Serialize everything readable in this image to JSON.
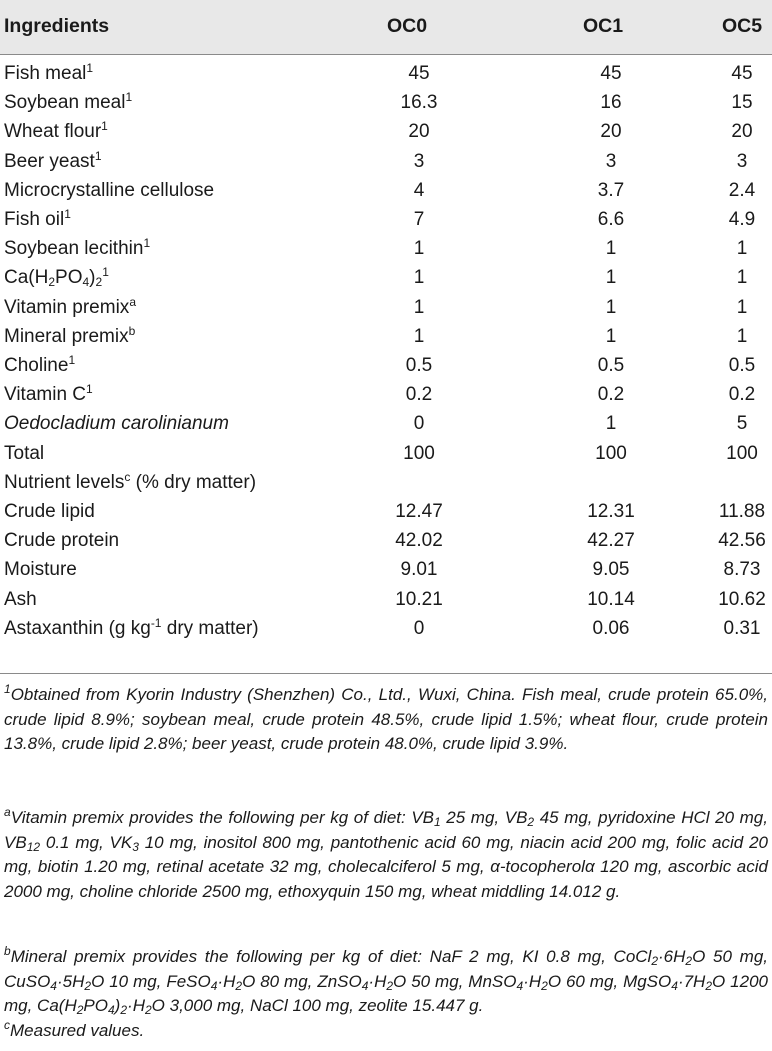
{
  "header": {
    "ingredients": "Ingredients",
    "oc0": "OC0",
    "oc1": "OC1",
    "oc5": "OC5"
  },
  "rows": [
    {
      "name": "Fish meal",
      "sup": "1",
      "v": [
        "45",
        "45",
        "45"
      ]
    },
    {
      "name": "Soybean meal",
      "sup": "1",
      "v": [
        "16.3",
        "16",
        "15"
      ]
    },
    {
      "name": "Wheat flour",
      "sup": "1",
      "v": [
        "20",
        "20",
        "20"
      ]
    },
    {
      "name": "Beer yeast",
      "sup": "1",
      "v": [
        "3",
        "3",
        "3"
      ]
    },
    {
      "name": "Microcrystalline cellulose",
      "sup": "",
      "v": [
        "4",
        "3.7",
        "2.4"
      ]
    },
    {
      "name": "Fish oil",
      "sup": "1",
      "v": [
        "7",
        "6.6",
        "4.9"
      ]
    },
    {
      "name": "Soybean lecithin",
      "sup": "1",
      "v": [
        "1",
        "1",
        "1"
      ]
    },
    {
      "name_parts": [
        "Ca(H",
        "2",
        "PO",
        "4",
        ")",
        "2"
      ],
      "sup": "1",
      "v": [
        "1",
        "1",
        "1"
      ]
    },
    {
      "name": "Vitamin premix",
      "sup": "a",
      "v": [
        "1",
        "1",
        "1"
      ]
    },
    {
      "name": "Mineral premix",
      "sup": "b",
      "v": [
        "1",
        "1",
        "1"
      ]
    },
    {
      "name": "Choline",
      "sup": "1",
      "v": [
        "0.5",
        "0.5",
        "0.5"
      ]
    },
    {
      "name": "Vitamin C",
      "sup": "1",
      "v": [
        "0.2",
        "0.2",
        "0.2"
      ]
    },
    {
      "name": "Oedocladium carolinianum",
      "sup": "",
      "v": [
        "0",
        "1",
        "5"
      ]
    },
    {
      "name": "Total",
      "sup": "",
      "v": [
        "100",
        "100",
        "100"
      ]
    }
  ],
  "nutrient_header": {
    "pre": "Nutrient levels",
    "sup": "c",
    "post": " (% dry matter)"
  },
  "nutrients": [
    {
      "name": "Crude lipid",
      "v": [
        "12.47",
        "12.31",
        "11.88"
      ]
    },
    {
      "name": "Crude protein",
      "v": [
        "42.02",
        "42.27",
        "42.56"
      ]
    },
    {
      "name": "Moisture",
      "v": [
        "9.01",
        "9.05",
        "8.73"
      ]
    },
    {
      "name": "Ash",
      "v": [
        "10.21",
        "10.14",
        "10.62"
      ]
    },
    {
      "name_pre": "Astaxanthin (g kg",
      "name_sup": "-1",
      "name_post": " dry matter)",
      "v": [
        "0",
        "0.06",
        "0.31"
      ]
    }
  ],
  "footnotes": {
    "n1_mark": "1",
    "n1": "Obtained from Kyorin Industry (Shenzhen) Co., Ltd., Wuxi, China. Fish meal, crude protein 65.0%, crude lipid 8.9%; soybean meal, crude protein 48.5%, crude lipid 1.5%; wheat flour, crude protein 13.8%, crude lipid 2.8%; beer yeast, crude protein 48.0%, crude lipid 3.9%.",
    "a_mark": "a",
    "a_parts": [
      "Vitamin premix provides the following per kg of diet: VB",
      "1",
      " 25 mg, VB",
      "2",
      " 45 mg, pyridoxine HCl 20 mg, VB",
      "12",
      " 0.1 mg, VK",
      "3",
      " 10 mg, inositol 800 mg, pantothenic acid 60 mg, niacin acid 200 mg, folic acid 20 mg, biotin 1.20 mg, retinal acetate 32 mg, cholecalciferol 5 mg, α-tocopherolα 120 mg, ascorbic acid 2000 mg, choline chloride 2500 mg, ethoxyquin 150 mg, wheat middling 14.012 g."
    ],
    "b_mark": "b",
    "b_parts": [
      "Mineral premix provides the following per kg of diet: NaF 2 mg, KI 0.8 mg, CoCl",
      "2",
      "·6H",
      "2",
      "O 50 mg, CuSO",
      "4",
      "·5H",
      "2",
      "O 10 mg, FeSO",
      "4",
      "·H",
      "2",
      "O 80 mg, ZnSO",
      "4",
      "·H",
      "2",
      "O 50 mg, MnSO",
      "4",
      "·H",
      "2",
      "O 60 mg, MgSO",
      "4",
      "·7H",
      "2",
      "O 1200 mg, Ca(H",
      "2",
      "PO",
      "4",
      ")",
      "2",
      "·H",
      "2",
      "O 3,000 mg, NaCl 100 mg, zeolite 15.447 g."
    ],
    "c_mark": "c",
    "c": "Measured values."
  }
}
